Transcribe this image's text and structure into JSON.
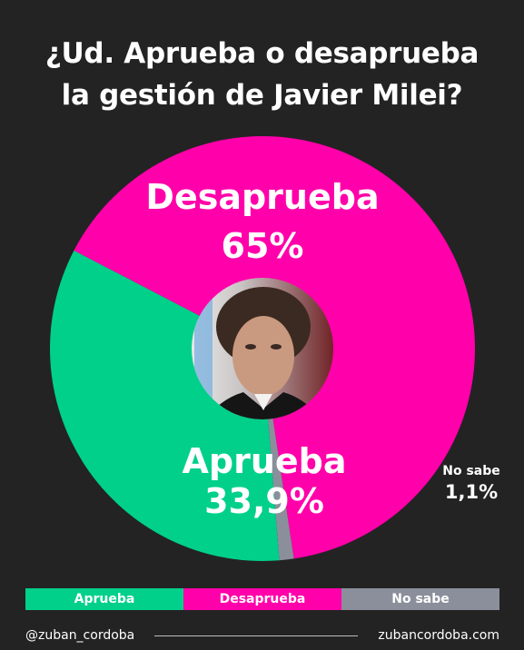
{
  "title_lines": [
    "¿Ud. Aprueba o desaprueba",
    "la gestión de Javier Milei?"
  ],
  "chart_data": {
    "type": "pie",
    "title": "¿Ud. Aprueba o desaprueba la gestión de Javier Milei?",
    "slices": [
      {
        "label": "Desaprueba",
        "value": 65,
        "display": "65%",
        "color": "#ff00aa"
      },
      {
        "label": "No sabe",
        "value": 1.1,
        "display": "1,1%",
        "color": "#8a8f9b"
      },
      {
        "label": "Aprueba",
        "value": 33.9,
        "display": "33,9%",
        "color": "#00d08a"
      }
    ],
    "legend": [
      "Aprueba",
      "Desaprueba",
      "No sabe"
    ],
    "legend_placement": "bottom"
  },
  "center_image": "portrait-photo",
  "footer": {
    "handle": "@zuban_cordoba",
    "website": "zubancordoba.com"
  }
}
